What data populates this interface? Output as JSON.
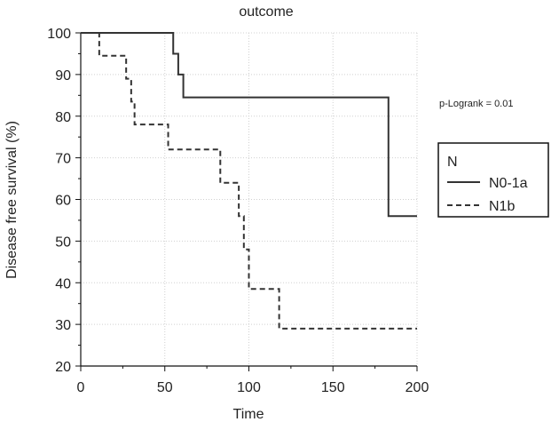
{
  "chart_data": {
    "type": "line",
    "subtype": "kaplan-meier-step",
    "title": "outcome",
    "xlabel": "Time",
    "ylabel": "Disease free survival (%)",
    "xlim": [
      0,
      200
    ],
    "ylim": [
      20,
      100
    ],
    "x_ticks": [
      0,
      50,
      100,
      150,
      200
    ],
    "y_ticks": [
      20,
      30,
      40,
      50,
      60,
      70,
      80,
      90,
      100
    ],
    "grid": true,
    "legend": {
      "title": "N",
      "placement": "right"
    },
    "annotations": [
      {
        "text": "p-Logrank = 0.01"
      }
    ],
    "series": [
      {
        "name": "N0-1a",
        "line_style": "solid",
        "color": "#333333",
        "x": [
          0,
          55,
          55,
          58,
          58,
          61,
          61,
          183,
          183,
          200
        ],
        "y": [
          100,
          100,
          95,
          95,
          90,
          90,
          84.5,
          84.5,
          56,
          56
        ]
      },
      {
        "name": "N1b",
        "line_style": "dashed",
        "color": "#333333",
        "x": [
          0,
          11,
          11,
          27,
          27,
          30,
          30,
          32,
          32,
          52,
          52,
          83,
          83,
          94,
          94,
          97,
          97,
          100,
          100,
          118,
          118,
          122,
          122,
          200
        ],
        "y": [
          100,
          100,
          94.5,
          94.5,
          89,
          89,
          83.5,
          83.5,
          78,
          78,
          72,
          72,
          64,
          64,
          56,
          56,
          48,
          48,
          38.5,
          38.5,
          29,
          29,
          29,
          29
        ]
      }
    ]
  }
}
